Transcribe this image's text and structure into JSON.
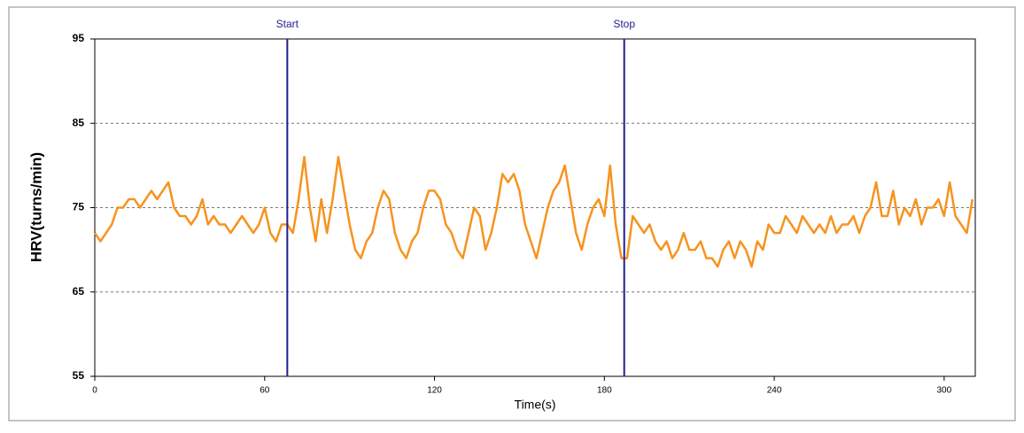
{
  "chart_data": {
    "type": "line",
    "x_label": "Time(s)",
    "y_label": "HRV(turns/min)",
    "x": [
      0,
      2,
      4,
      6,
      8,
      10,
      12,
      14,
      16,
      18,
      20,
      22,
      24,
      26,
      28,
      30,
      32,
      34,
      36,
      38,
      40,
      42,
      44,
      46,
      48,
      50,
      52,
      54,
      56,
      58,
      60,
      62,
      64,
      66,
      68,
      70,
      72,
      74,
      76,
      78,
      80,
      82,
      84,
      86,
      88,
      90,
      92,
      94,
      96,
      98,
      100,
      102,
      104,
      106,
      108,
      110,
      112,
      114,
      116,
      118,
      120,
      122,
      124,
      126,
      128,
      130,
      132,
      134,
      136,
      138,
      140,
      142,
      144,
      146,
      148,
      150,
      152,
      154,
      156,
      158,
      160,
      162,
      164,
      166,
      168,
      170,
      172,
      174,
      176,
      178,
      180,
      182,
      184,
      186,
      188,
      190,
      192,
      194,
      196,
      198,
      200,
      202,
      204,
      206,
      208,
      210,
      212,
      214,
      216,
      218,
      220,
      222,
      224,
      226,
      228,
      230,
      232,
      234,
      236,
      238,
      240,
      242,
      244,
      246,
      248,
      250,
      252,
      254,
      256,
      258,
      260,
      262,
      264,
      266,
      268,
      270,
      272,
      274,
      276,
      278,
      280,
      282,
      284,
      286,
      288,
      290,
      292,
      294,
      296,
      298,
      300,
      302,
      304,
      306,
      308,
      310
    ],
    "series": [
      {
        "name": "HRV",
        "color": "#f7931e",
        "values": [
          72,
          71,
          72,
          73,
          75,
          75,
          76,
          76,
          75,
          76,
          77,
          76,
          77,
          78,
          75,
          74,
          74,
          73,
          74,
          76,
          73,
          74,
          73,
          73,
          72,
          73,
          74,
          73,
          72,
          73,
          75,
          72,
          71,
          73,
          73,
          72,
          76,
          81,
          75,
          71,
          76,
          72,
          76,
          81,
          77,
          73,
          70,
          69,
          71,
          72,
          75,
          77,
          76,
          72,
          70,
          69,
          71,
          72,
          75,
          77,
          77,
          76,
          73,
          72,
          70,
          69,
          72,
          75,
          74,
          70,
          72,
          75,
          79,
          78,
          79,
          77,
          73,
          71,
          69,
          72,
          75,
          77,
          78,
          80,
          76,
          72,
          70,
          73,
          75,
          76,
          74,
          80,
          73,
          69,
          69,
          74,
          73,
          72,
          73,
          71,
          70,
          71,
          69,
          70,
          72,
          70,
          70,
          71,
          69,
          69,
          68,
          70,
          71,
          69,
          71,
          70,
          68,
          71,
          70,
          73,
          72,
          72,
          74,
          73,
          72,
          74,
          73,
          72,
          73,
          72,
          74,
          72,
          73,
          73,
          74,
          72,
          74,
          75,
          78,
          74,
          74,
          77,
          73,
          75,
          74,
          76,
          73,
          75,
          75,
          76,
          74,
          78,
          74,
          73,
          72,
          76
        ]
      }
    ],
    "annotations": [
      {
        "x": 68,
        "label": "Start",
        "color": "#1f1f8f"
      },
      {
        "x": 187,
        "label": "Stop",
        "color": "#1f1f8f"
      }
    ],
    "xlim": [
      0,
      311
    ],
    "xticks": [
      0,
      60,
      120,
      180,
      240,
      300
    ],
    "ylim": [
      55,
      95
    ],
    "yticks": [
      55,
      65,
      75,
      85,
      95
    ],
    "grid": true
  }
}
